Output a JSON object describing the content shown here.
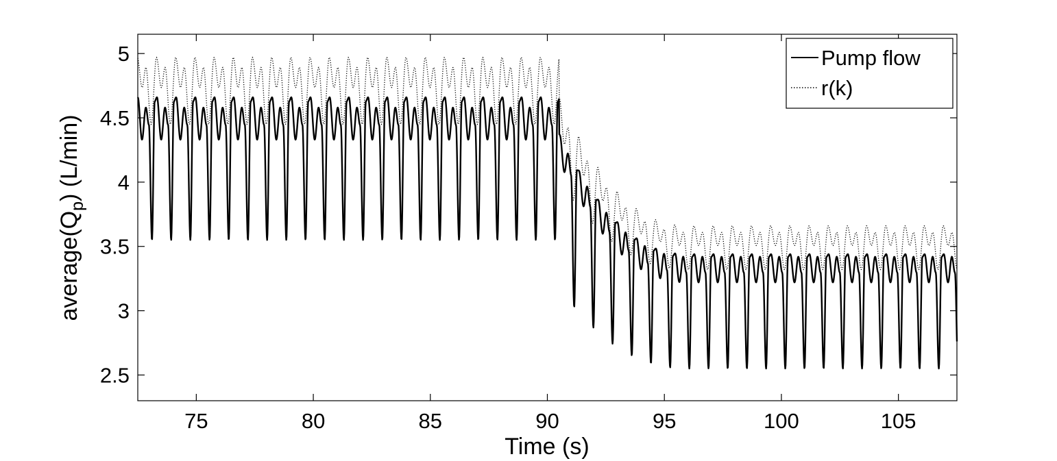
{
  "chart_data": {
    "type": "line",
    "xlabel": "Time (s)",
    "ylabel": {
      "prefix": "average(Q",
      "subscript": "p",
      "suffix": ") (L/min)"
    },
    "xlim": [
      72.5,
      107.5
    ],
    "ylim": [
      2.3,
      5.15
    ],
    "xticks": [
      75,
      80,
      85,
      90,
      95,
      100,
      105
    ],
    "yticks": [
      2.5,
      3,
      3.5,
      4,
      4.5,
      5
    ],
    "ytick_labels": [
      "2.5",
      "3",
      "3.5",
      "4",
      "4.5",
      "5"
    ],
    "grid": false,
    "legend_position": "top-right",
    "beat_period": 0.82,
    "step_time": 90.5,
    "series": [
      {
        "name": "Pump flow",
        "style": "solid",
        "color": "#000000",
        "segments": [
          {
            "t_start": 72.5,
            "t_end": 90.5,
            "peak": 4.66,
            "notch": 4.33,
            "second_peak": 4.58,
            "min": 3.55
          },
          {
            "t_start": 90.5,
            "t_end": 96.0,
            "peak": 3.44,
            "notch": 3.22,
            "second_peak": 3.42,
            "min": 2.55,
            "transition_start_peak": 4.38,
            "transition_start_min": 3.18
          },
          {
            "t_start": 96.0,
            "t_end": 107.5,
            "peak": 3.44,
            "notch": 3.22,
            "second_peak": 3.42,
            "min": 2.55
          }
        ]
      },
      {
        "name": "r(k)",
        "style": "dotted",
        "color": "#000000",
        "segments": [
          {
            "t_start": 72.5,
            "t_end": 90.5,
            "peak": 4.97,
            "min": 4.45
          },
          {
            "t_start": 90.5,
            "t_end": 96.0,
            "peak": 3.66,
            "min": 3.32,
            "transition_start_peak": 4.66,
            "transition_start_min": 4.02
          },
          {
            "t_start": 96.0,
            "t_end": 107.5,
            "peak": 3.66,
            "min": 3.32
          }
        ]
      }
    ]
  }
}
